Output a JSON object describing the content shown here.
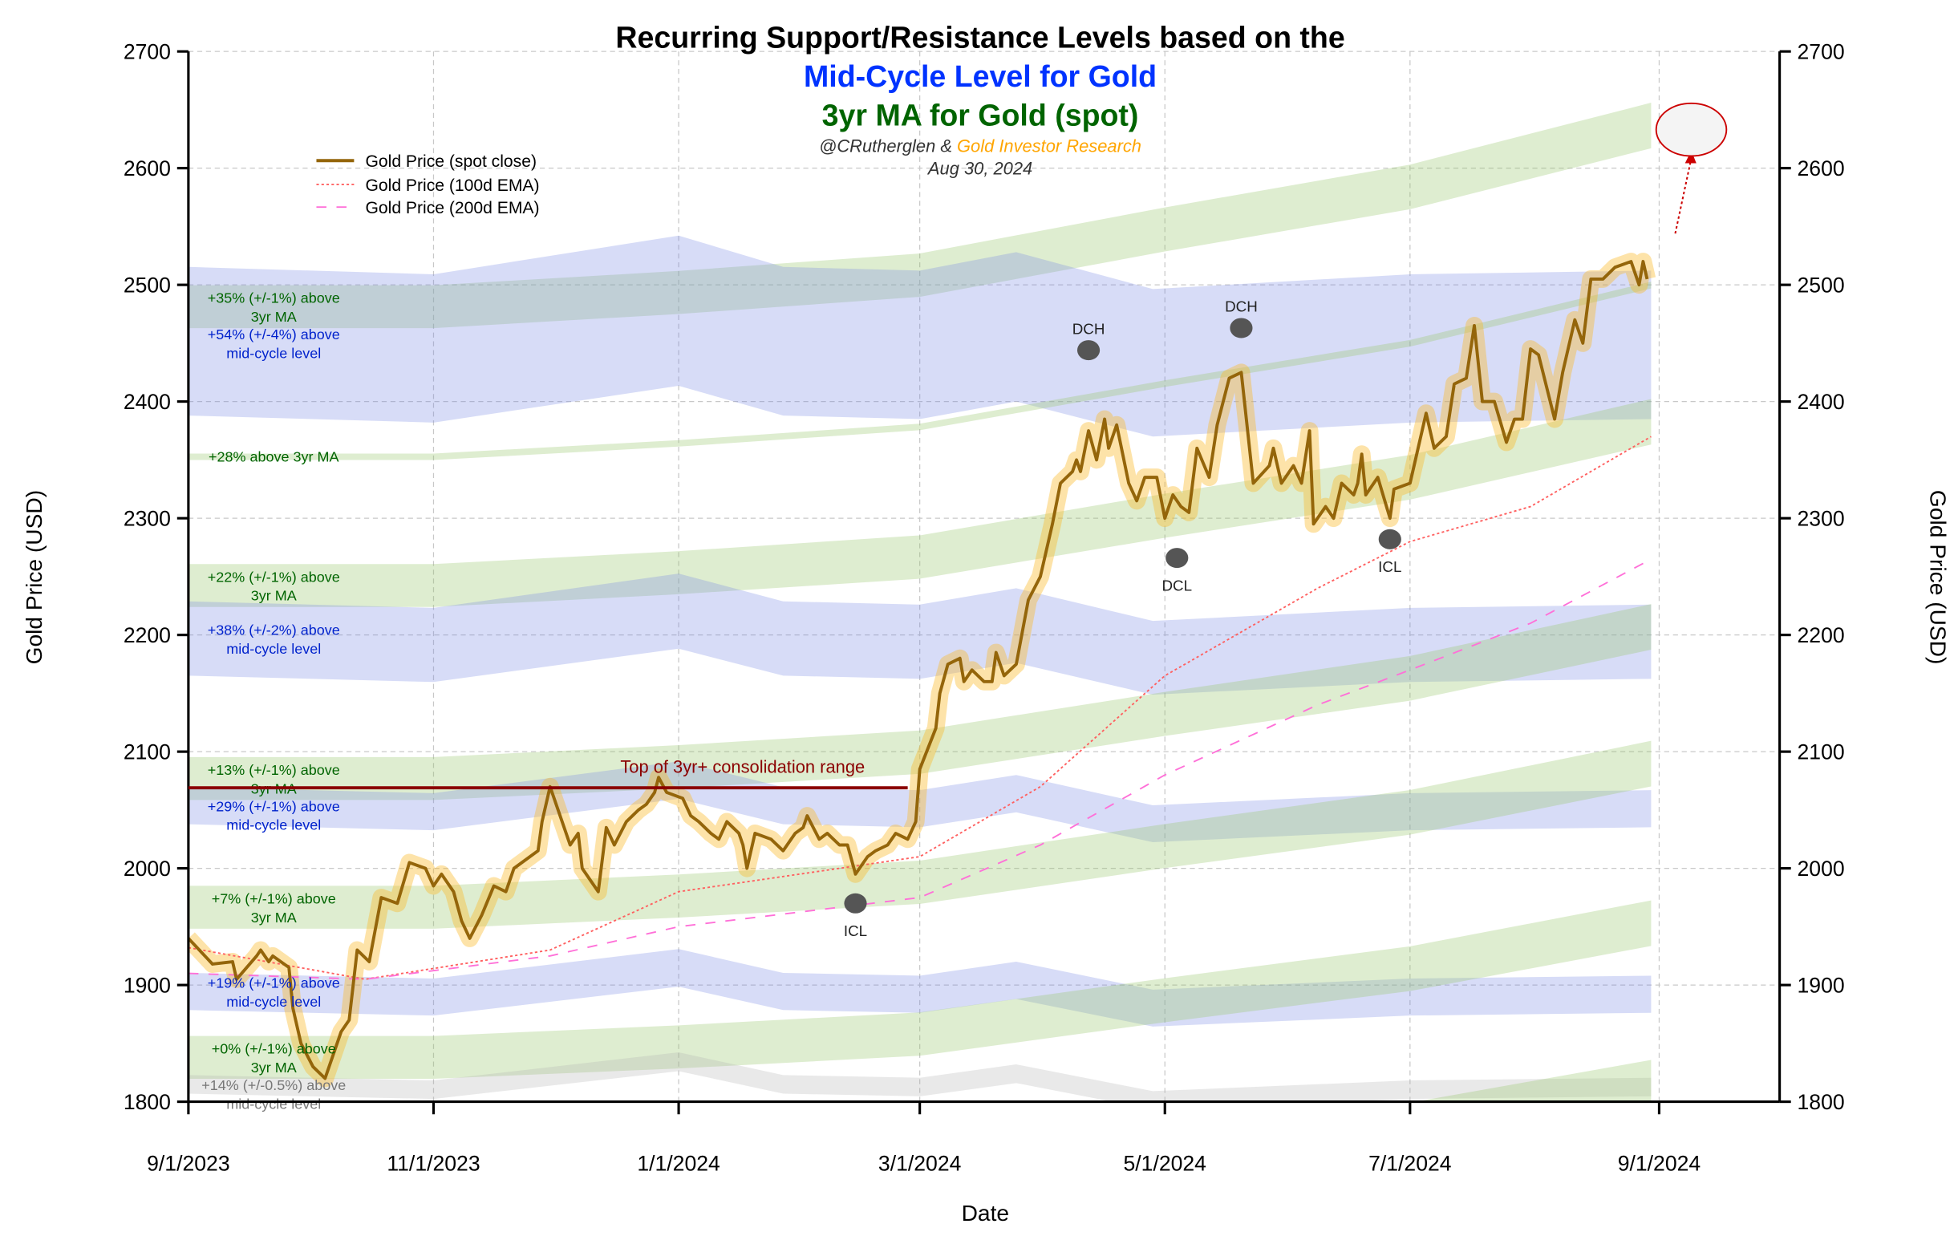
{
  "chart_data": {
    "type": "line",
    "title": {
      "line1": "Recurring Support/Resistance Levels based on the",
      "line2": "Mid-Cycle Level for Gold",
      "line3": "3yr MA for Gold (spot)",
      "credit_author": "@CRutherglen &",
      "credit_org": "Gold Investor Research",
      "date": "Aug 30, 2024"
    },
    "xlabel": "Date",
    "ylabel": "Gold Price (USD)",
    "ylabel_right": "Gold Price (USD)",
    "xlim": [
      "2023-09-01",
      "2024-10-01"
    ],
    "ylim": [
      1800,
      2700
    ],
    "x_ticks": [
      {
        "date": "2023-09-01",
        "label": "9/1/2023"
      },
      {
        "date": "2023-11-01",
        "label": "11/1/2023"
      },
      {
        "date": "2024-01-01",
        "label": "1/1/2024"
      },
      {
        "date": "2024-03-01",
        "label": "3/1/2024"
      },
      {
        "date": "2024-05-01",
        "label": "5/1/2024"
      },
      {
        "date": "2024-07-01",
        "label": "7/1/2024"
      },
      {
        "date": "2024-09-01",
        "label": "9/1/2024"
      }
    ],
    "y_ticks": [
      1800,
      1900,
      2000,
      2100,
      2200,
      2300,
      2400,
      2500,
      2600,
      2700
    ],
    "grid": true,
    "legend_placement": "top-left",
    "colors": {
      "spot": "#94650a",
      "spot_band": "#fbb828",
      "ema100": "#ff6060",
      "ema200": "#ff70d8",
      "ma_bands": "#98c86e",
      "midcycle_bands": "#7c8ce6",
      "grey_band": "#b0b0b0",
      "consolidation": "#8b0000",
      "title_blue": "#0033ff",
      "title_green": "#006400",
      "credit_orange": "#ffa500",
      "target_circle": "#cc0000"
    },
    "series": [
      {
        "name": "Gold Price (spot close)",
        "style": "solid",
        "points": [
          [
            "2023-09-01",
            1940
          ],
          [
            "2023-09-07",
            1918
          ],
          [
            "2023-09-12",
            1920
          ],
          [
            "2023-09-13",
            1905
          ],
          [
            "2023-09-18",
            1925
          ],
          [
            "2023-09-19",
            1930
          ],
          [
            "2023-09-21",
            1920
          ],
          [
            "2023-09-22",
            1925
          ],
          [
            "2023-09-26",
            1915
          ],
          [
            "2023-09-27",
            1880
          ],
          [
            "2023-09-29",
            1850
          ],
          [
            "2023-10-02",
            1830
          ],
          [
            "2023-10-05",
            1820
          ],
          [
            "2023-10-09",
            1860
          ],
          [
            "2023-10-11",
            1870
          ],
          [
            "2023-10-13",
            1930
          ],
          [
            "2023-10-16",
            1920
          ],
          [
            "2023-10-19",
            1975
          ],
          [
            "2023-10-23",
            1970
          ],
          [
            "2023-10-26",
            2005
          ],
          [
            "2023-10-30",
            2000
          ],
          [
            "2023-11-01",
            1985
          ],
          [
            "2023-11-03",
            1995
          ],
          [
            "2023-11-06",
            1980
          ],
          [
            "2023-11-08",
            1955
          ],
          [
            "2023-11-10",
            1940
          ],
          [
            "2023-11-13",
            1960
          ],
          [
            "2023-11-16",
            1985
          ],
          [
            "2023-11-19",
            1980
          ],
          [
            "2023-11-21",
            2000
          ],
          [
            "2023-11-27",
            2015
          ],
          [
            "2023-11-28",
            2040
          ],
          [
            "2023-11-30",
            2070
          ],
          [
            "2023-12-03",
            2040
          ],
          [
            "2023-12-05",
            2020
          ],
          [
            "2023-12-07",
            2030
          ],
          [
            "2023-12-08",
            2000
          ],
          [
            "2023-12-12",
            1980
          ],
          [
            "2023-12-14",
            2035
          ],
          [
            "2023-12-16",
            2020
          ],
          [
            "2023-12-19",
            2040
          ],
          [
            "2023-12-22",
            2050
          ],
          [
            "2023-12-24",
            2055
          ],
          [
            "2023-12-26",
            2065
          ],
          [
            "2023-12-27",
            2078
          ],
          [
            "2023-12-29",
            2065
          ],
          [
            "2024-01-02",
            2060
          ],
          [
            "2024-01-04",
            2045
          ],
          [
            "2024-01-06",
            2040
          ],
          [
            "2024-01-09",
            2030
          ],
          [
            "2024-01-11",
            2025
          ],
          [
            "2024-01-13",
            2040
          ],
          [
            "2024-01-16",
            2030
          ],
          [
            "2024-01-17",
            2020
          ],
          [
            "2024-01-18",
            2000
          ],
          [
            "2024-01-20",
            2030
          ],
          [
            "2024-01-24",
            2025
          ],
          [
            "2024-01-27",
            2015
          ],
          [
            "2024-01-30",
            2030
          ],
          [
            "2024-02-01",
            2035
          ],
          [
            "2024-02-02",
            2045
          ],
          [
            "2024-02-05",
            2025
          ],
          [
            "2024-02-07",
            2030
          ],
          [
            "2024-02-10",
            2020
          ],
          [
            "2024-02-12",
            2020
          ],
          [
            "2024-02-14",
            1995
          ],
          [
            "2024-02-17",
            2010
          ],
          [
            "2024-02-19",
            2015
          ],
          [
            "2024-02-22",
            2020
          ],
          [
            "2024-02-24",
            2030
          ],
          [
            "2024-02-27",
            2025
          ],
          [
            "2024-02-29",
            2040
          ],
          [
            "2024-03-01",
            2085
          ],
          [
            "2024-03-05",
            2120
          ],
          [
            "2024-03-06",
            2150
          ],
          [
            "2024-03-08",
            2175
          ],
          [
            "2024-03-11",
            2180
          ],
          [
            "2024-03-12",
            2160
          ],
          [
            "2024-03-14",
            2170
          ],
          [
            "2024-03-17",
            2160
          ],
          [
            "2024-03-19",
            2160
          ],
          [
            "2024-03-20",
            2185
          ],
          [
            "2024-03-22",
            2165
          ],
          [
            "2024-03-25",
            2175
          ],
          [
            "2024-03-28",
            2230
          ],
          [
            "2024-03-31",
            2250
          ],
          [
            "2024-04-03",
            2295
          ],
          [
            "2024-04-05",
            2330
          ],
          [
            "2024-04-08",
            2340
          ],
          [
            "2024-04-09",
            2350
          ],
          [
            "2024-04-10",
            2340
          ],
          [
            "2024-04-12",
            2375
          ],
          [
            "2024-04-14",
            2350
          ],
          [
            "2024-04-16",
            2385
          ],
          [
            "2024-04-17",
            2360
          ],
          [
            "2024-04-19",
            2380
          ],
          [
            "2024-04-22",
            2330
          ],
          [
            "2024-04-24",
            2315
          ],
          [
            "2024-04-26",
            2335
          ],
          [
            "2024-04-29",
            2335
          ],
          [
            "2024-05-01",
            2300
          ],
          [
            "2024-05-03",
            2320
          ],
          [
            "2024-05-05",
            2310
          ],
          [
            "2024-05-07",
            2305
          ],
          [
            "2024-05-09",
            2360
          ],
          [
            "2024-05-12",
            2335
          ],
          [
            "2024-05-14",
            2380
          ],
          [
            "2024-05-17",
            2420
          ],
          [
            "2024-05-20",
            2425
          ],
          [
            "2024-05-23",
            2330
          ],
          [
            "2024-05-27",
            2345
          ],
          [
            "2024-05-28",
            2360
          ],
          [
            "2024-05-30",
            2330
          ],
          [
            "2024-06-02",
            2345
          ],
          [
            "2024-06-04",
            2330
          ],
          [
            "2024-06-06",
            2375
          ],
          [
            "2024-06-07",
            2295
          ],
          [
            "2024-06-10",
            2310
          ],
          [
            "2024-06-12",
            2300
          ],
          [
            "2024-06-14",
            2330
          ],
          [
            "2024-06-17",
            2320
          ],
          [
            "2024-06-18",
            2330
          ],
          [
            "2024-06-19",
            2355
          ],
          [
            "2024-06-20",
            2320
          ],
          [
            "2024-06-23",
            2335
          ],
          [
            "2024-06-26",
            2300
          ],
          [
            "2024-06-27",
            2325
          ],
          [
            "2024-07-01",
            2330
          ],
          [
            "2024-07-03",
            2360
          ],
          [
            "2024-07-05",
            2390
          ],
          [
            "2024-07-07",
            2360
          ],
          [
            "2024-07-10",
            2370
          ],
          [
            "2024-07-12",
            2415
          ],
          [
            "2024-07-15",
            2420
          ],
          [
            "2024-07-17",
            2465
          ],
          [
            "2024-07-19",
            2400
          ],
          [
            "2024-07-22",
            2400
          ],
          [
            "2024-07-25",
            2365
          ],
          [
            "2024-07-27",
            2385
          ],
          [
            "2024-07-29",
            2385
          ],
          [
            "2024-07-31",
            2445
          ],
          [
            "2024-08-02",
            2440
          ],
          [
            "2024-08-06",
            2385
          ],
          [
            "2024-08-08",
            2425
          ],
          [
            "2024-08-11",
            2470
          ],
          [
            "2024-08-13",
            2450
          ],
          [
            "2024-08-15",
            2505
          ],
          [
            "2024-08-18",
            2505
          ],
          [
            "2024-08-21",
            2515
          ],
          [
            "2024-08-25",
            2520
          ],
          [
            "2024-08-27",
            2500
          ],
          [
            "2024-08-28",
            2520
          ],
          [
            "2024-08-29",
            2505
          ]
        ]
      },
      {
        "name": "Gold Price (100d EMA)",
        "style": "dotted",
        "points": [
          [
            "2023-09-01",
            1932
          ],
          [
            "2023-10-15",
            1905
          ],
          [
            "2023-11-30",
            1930
          ],
          [
            "2024-01-01",
            1980
          ],
          [
            "2024-03-01",
            2010
          ],
          [
            "2024-03-31",
            2070
          ],
          [
            "2024-05-01",
            2165
          ],
          [
            "2024-06-08",
            2240
          ],
          [
            "2024-07-01",
            2280
          ],
          [
            "2024-07-31",
            2310
          ],
          [
            "2024-08-30",
            2370
          ]
        ]
      },
      {
        "name": "Gold Price (200d EMA)",
        "style": "dashed",
        "points": [
          [
            "2023-09-01",
            1910
          ],
          [
            "2023-10-15",
            1905
          ],
          [
            "2023-11-30",
            1925
          ],
          [
            "2024-01-01",
            1950
          ],
          [
            "2024-03-01",
            1975
          ],
          [
            "2024-03-31",
            2020
          ],
          [
            "2024-05-01",
            2080
          ],
          [
            "2024-06-08",
            2140
          ],
          [
            "2024-07-01",
            2170
          ],
          [
            "2024-07-31",
            2210
          ],
          [
            "2024-08-30",
            2265
          ]
        ]
      }
    ],
    "base_levels": {
      "three_year_ma": [
        [
          "2023-09-01",
          1838
        ],
        [
          "2023-11-01",
          1838
        ],
        [
          "2024-01-01",
          1847
        ],
        [
          "2024-03-01",
          1858
        ],
        [
          "2024-05-01",
          1887
        ],
        [
          "2024-07-01",
          1914
        ],
        [
          "2024-08-30",
          1953
        ]
      ],
      "mid_cycle": [
        [
          "2023-09-01",
          1592
        ],
        [
          "2023-11-01",
          1588
        ],
        [
          "2024-01-01",
          1609
        ],
        [
          "2024-01-27",
          1592
        ],
        [
          "2024-03-01",
          1590
        ],
        [
          "2024-03-25",
          1600
        ],
        [
          "2024-04-28",
          1580
        ],
        [
          "2024-07-01",
          1588
        ],
        [
          "2024-08-30",
          1590
        ]
      ]
    },
    "bands": [
      {
        "base": "three_year_ma",
        "pct": 35,
        "tol": 1,
        "label1": "+35% (+/-1%) above",
        "label2": "3yr MA",
        "kind": "green"
      },
      {
        "base": "mid_cycle",
        "pct": 54,
        "tol": 4,
        "label1": "+54% (+/-4%) above",
        "label2": "mid-cycle level",
        "kind": "blue"
      },
      {
        "base": "three_year_ma",
        "pct": 28,
        "tol": 0.15,
        "label1": "+28% above 3yr MA",
        "label2": "",
        "kind": "green"
      },
      {
        "base": "three_year_ma",
        "pct": 22,
        "tol": 1,
        "label1": "+22% (+/-1%) above",
        "label2": "3yr MA",
        "kind": "green"
      },
      {
        "base": "mid_cycle",
        "pct": 38,
        "tol": 2,
        "label1": "+38% (+/-2%) above",
        "label2": "mid-cycle level",
        "kind": "blue"
      },
      {
        "base": "three_year_ma",
        "pct": 13,
        "tol": 1,
        "label1": "+13% (+/-1%) above",
        "label2": "3yr MA",
        "kind": "green"
      },
      {
        "base": "mid_cycle",
        "pct": 29,
        "tol": 1,
        "label1": "+29% (+/-1%) above",
        "label2": "mid-cycle level",
        "kind": "blue"
      },
      {
        "base": "three_year_ma",
        "pct": 7,
        "tol": 1,
        "label1": "+7% (+/-1%) above",
        "label2": "3yr MA",
        "kind": "green"
      },
      {
        "base": "mid_cycle",
        "pct": 19,
        "tol": 1,
        "label1": "+19% (+/-1%) above",
        "label2": "mid-cycle level",
        "kind": "blue"
      },
      {
        "base": "three_year_ma",
        "pct": 0,
        "tol": 1,
        "label1": "+0% (+/-1%) above",
        "label2": "3yr MA",
        "kind": "green"
      },
      {
        "base": "mid_cycle",
        "pct": 14,
        "tol": 0.5,
        "label1": "+14% (+/-0.5%) above",
        "label2": "mid-cycle level",
        "kind": "grey"
      },
      {
        "base": "three_year_ma",
        "pct": -7,
        "tol": 1,
        "label1": "",
        "label2": "",
        "kind": "green"
      }
    ],
    "consolidation": {
      "label": "Top of 3yr+ consolidation range",
      "price": 2069,
      "start": "2023-09-01",
      "end": "2024-02-27"
    },
    "cycle_markers": [
      {
        "label": "DCH",
        "date": "2024-04-12",
        "price": 2444,
        "label_pos": "above"
      },
      {
        "label": "DCH",
        "date": "2024-05-20",
        "price": 2463,
        "label_pos": "above"
      },
      {
        "label": "DCL",
        "date": "2024-05-04",
        "price": 2266,
        "label_pos": "below"
      },
      {
        "label": "ICL",
        "date": "2024-02-14",
        "price": 1970,
        "label_pos": "below"
      },
      {
        "label": "ICL",
        "date": "2024-06-26",
        "price": 2282,
        "label_pos": "below"
      }
    ],
    "projection": {
      "from": [
        "2024-09-05",
        2544
      ],
      "to": [
        "2024-09-09",
        2615
      ],
      "target": [
        "2024-09-09",
        2633
      ]
    }
  }
}
